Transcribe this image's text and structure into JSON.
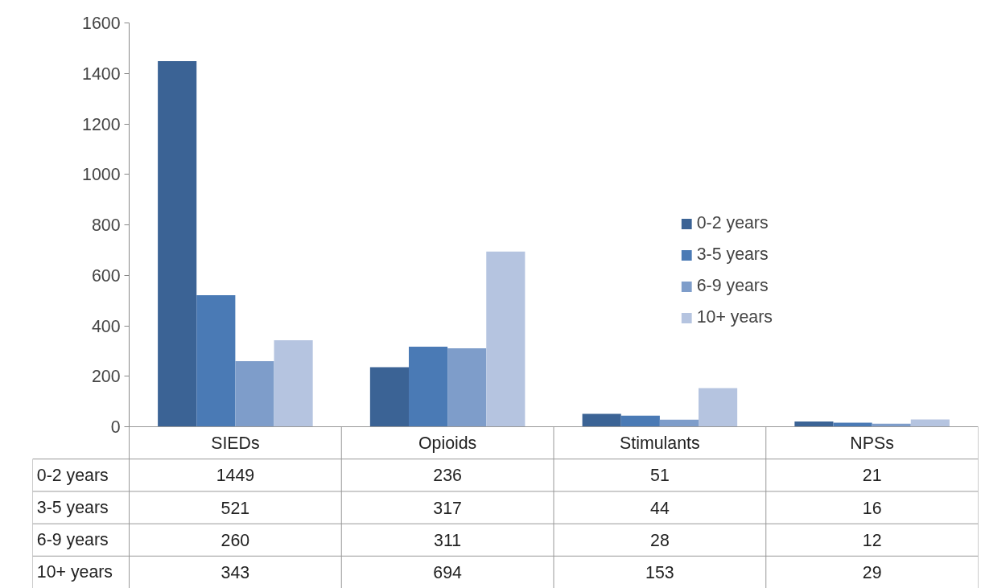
{
  "chart_data": {
    "type": "bar",
    "categories": [
      "SIEDs",
      "Opioids",
      "Stimulants",
      "NPSs"
    ],
    "series": [
      {
        "name": "0-2 years",
        "color": "#3b6395",
        "values": [
          1449,
          236,
          51,
          21
        ]
      },
      {
        "name": "3-5 years",
        "color": "#4a7ab5",
        "values": [
          521,
          317,
          44,
          16
        ]
      },
      {
        "name": "6-9 years",
        "color": "#7e9dca",
        "values": [
          260,
          311,
          28,
          12
        ]
      },
      {
        "name": "10+ years",
        "color": "#b5c4e0",
        "values": [
          343,
          694,
          153,
          29
        ]
      }
    ],
    "ylim": [
      0,
      1600
    ],
    "yticks": [
      0,
      200,
      400,
      600,
      800,
      1000,
      1200,
      1400,
      1600
    ],
    "grid": false,
    "legend": "right",
    "data_labels": true
  }
}
